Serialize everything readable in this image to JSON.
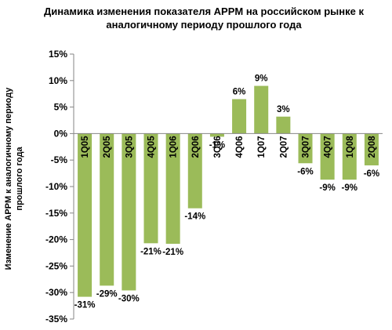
{
  "chart_data": {
    "type": "bar",
    "title": "Динамика изменения показателя APPM на российском рынке к аналогичному периоду прошлого года",
    "ylabel": "Изменение APPM к аналогичному периоду прошлого года",
    "xlabel": "",
    "categories": [
      "1Q05",
      "2Q05",
      "3Q05",
      "4Q05",
      "1Q06",
      "2Q06",
      "3Q06",
      "4Q06",
      "1Q07",
      "2Q07",
      "3Q07",
      "4Q07",
      "1Q08",
      "2Q08"
    ],
    "values": [
      -31,
      -29,
      -30,
      -21,
      -21,
      -14,
      -1,
      6,
      9,
      3,
      -6,
      -9,
      -9,
      -6
    ],
    "value_labels": [
      "-31%",
      "-29%",
      "-30%",
      "-21%",
      "-21%",
      "-14%",
      "-1%",
      "6%",
      "9%",
      "3%",
      "-6%",
      "-9%",
      "-9%",
      "-6%"
    ],
    "plotted_values": [
      -30.8,
      -28.7,
      -29.6,
      -20.7,
      -20.8,
      -14.1,
      -0.6,
      6.5,
      9.0,
      3.2,
      -5.6,
      -8.7,
      -8.7,
      -6.0
    ],
    "yticks": [
      15,
      10,
      5,
      0,
      -5,
      -10,
      -15,
      -20,
      -25,
      -30,
      -35
    ],
    "ytick_labels": [
      "15%",
      "10%",
      "5%",
      "0%",
      "-5%",
      "-10%",
      "-15%",
      "-20%",
      "-25%",
      "-30%",
      "-35%"
    ],
    "ylim": [
      -35,
      15
    ],
    "bar_color": "#9bbb59",
    "grid": false,
    "legend": "none"
  }
}
